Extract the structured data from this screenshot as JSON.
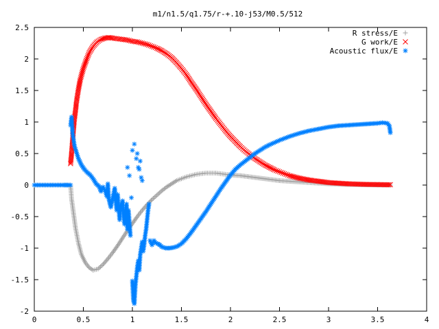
{
  "chart_data": {
    "type": "scatter",
    "title": "m1/n1.5/q1.75/r-+.10-j53/M0.5/512",
    "xlim": [
      0,
      4
    ],
    "ylim": [
      -2,
      2.5
    ],
    "x_ticks": [
      0,
      0.5,
      1,
      1.5,
      2,
      2.5,
      3,
      3.5,
      4
    ],
    "x_tick_labels": [
      "0",
      "0.5",
      "1",
      "1.5",
      "2",
      "2.5",
      "3",
      "3.5",
      "4"
    ],
    "y_ticks": [
      -2,
      -1.5,
      -1,
      -0.5,
      0,
      0.5,
      1,
      1.5,
      2,
      2.5
    ],
    "y_tick_labels": [
      "-2",
      "-1.5",
      "-1",
      "-0.5",
      "0",
      "0.5",
      "1",
      "1.5",
      "2",
      "2.5"
    ],
    "grid": false,
    "legend_position": "top-right",
    "series": [
      {
        "name": "R stress/E",
        "marker": "plus",
        "color": "#a0a0a0",
        "points": [
          [
            0.0,
            0
          ],
          [
            0.05,
            0
          ],
          [
            0.1,
            0
          ],
          [
            0.15,
            0
          ],
          [
            0.2,
            0
          ],
          [
            0.25,
            0
          ],
          [
            0.3,
            0
          ],
          [
            0.34,
            0
          ],
          [
            0.37,
            0
          ],
          [
            0.38,
            -0.22
          ],
          [
            0.4,
            -0.45
          ],
          [
            0.42,
            -0.68
          ],
          [
            0.45,
            -0.92
          ],
          [
            0.48,
            -1.1
          ],
          [
            0.52,
            -1.23
          ],
          [
            0.56,
            -1.31
          ],
          [
            0.6,
            -1.35
          ],
          [
            0.65,
            -1.33
          ],
          [
            0.7,
            -1.26
          ],
          [
            0.75,
            -1.17
          ],
          [
            0.8,
            -1.07
          ],
          [
            0.85,
            -0.96
          ],
          [
            0.9,
            -0.84
          ],
          [
            0.95,
            -0.72
          ],
          [
            1.0,
            -0.61
          ],
          [
            1.05,
            -0.5
          ],
          [
            1.1,
            -0.4
          ],
          [
            1.15,
            -0.31
          ],
          [
            1.2,
            -0.23
          ],
          [
            1.25,
            -0.16
          ],
          [
            1.3,
            -0.09
          ],
          [
            1.35,
            -0.03
          ],
          [
            1.4,
            0.02
          ],
          [
            1.45,
            0.07
          ],
          [
            1.5,
            0.1
          ],
          [
            1.55,
            0.13
          ],
          [
            1.6,
            0.15
          ],
          [
            1.65,
            0.17
          ],
          [
            1.7,
            0.18
          ],
          [
            1.75,
            0.19
          ],
          [
            1.8,
            0.19
          ],
          [
            1.85,
            0.19
          ],
          [
            1.9,
            0.18
          ],
          [
            1.95,
            0.17
          ],
          [
            2.0,
            0.16
          ],
          [
            2.1,
            0.15
          ],
          [
            2.2,
            0.13
          ],
          [
            2.3,
            0.11
          ],
          [
            2.4,
            0.09
          ],
          [
            2.5,
            0.07
          ],
          [
            2.6,
            0.06
          ],
          [
            2.7,
            0.05
          ],
          [
            2.8,
            0.04
          ],
          [
            2.9,
            0.03
          ],
          [
            3.0,
            0.02
          ],
          [
            3.1,
            0.015
          ],
          [
            3.2,
            0.01
          ],
          [
            3.3,
            0.008
          ],
          [
            3.4,
            0.005
          ],
          [
            3.5,
            0.003
          ],
          [
            3.6,
            0.002
          ],
          [
            3.63,
            0.0
          ]
        ]
      },
      {
        "name": "G work/E",
        "marker": "cross",
        "color": "#ff0000",
        "points": [
          [
            0.37,
            0.34
          ],
          [
            0.38,
            0.5
          ],
          [
            0.39,
            0.7
          ],
          [
            0.4,
            0.9
          ],
          [
            0.41,
            1.06
          ],
          [
            0.42,
            1.18
          ],
          [
            0.43,
            1.32
          ],
          [
            0.45,
            1.52
          ],
          [
            0.47,
            1.68
          ],
          [
            0.5,
            1.85
          ],
          [
            0.53,
            1.98
          ],
          [
            0.56,
            2.1
          ],
          [
            0.6,
            2.2
          ],
          [
            0.64,
            2.27
          ],
          [
            0.68,
            2.31
          ],
          [
            0.72,
            2.33
          ],
          [
            0.76,
            2.34
          ],
          [
            0.8,
            2.33
          ],
          [
            0.85,
            2.32
          ],
          [
            0.9,
            2.31
          ],
          [
            0.95,
            2.3
          ],
          [
            1.0,
            2.28
          ],
          [
            1.05,
            2.27
          ],
          [
            1.1,
            2.25
          ],
          [
            1.15,
            2.23
          ],
          [
            1.2,
            2.2
          ],
          [
            1.25,
            2.17
          ],
          [
            1.3,
            2.13
          ],
          [
            1.35,
            2.08
          ],
          [
            1.4,
            2.02
          ],
          [
            1.45,
            1.94
          ],
          [
            1.5,
            1.85
          ],
          [
            1.55,
            1.75
          ],
          [
            1.6,
            1.63
          ],
          [
            1.65,
            1.52
          ],
          [
            1.7,
            1.4
          ],
          [
            1.75,
            1.28
          ],
          [
            1.8,
            1.17
          ],
          [
            1.85,
            1.06
          ],
          [
            1.9,
            0.96
          ],
          [
            1.95,
            0.86
          ],
          [
            2.0,
            0.77
          ],
          [
            2.05,
            0.69
          ],
          [
            2.1,
            0.61
          ],
          [
            2.15,
            0.54
          ],
          [
            2.2,
            0.48
          ],
          [
            2.25,
            0.42
          ],
          [
            2.3,
            0.37
          ],
          [
            2.35,
            0.32
          ],
          [
            2.4,
            0.28
          ],
          [
            2.45,
            0.24
          ],
          [
            2.5,
            0.21
          ],
          [
            2.55,
            0.18
          ],
          [
            2.6,
            0.15
          ],
          [
            2.7,
            0.11
          ],
          [
            2.8,
            0.08
          ],
          [
            2.9,
            0.06
          ],
          [
            3.0,
            0.04
          ],
          [
            3.1,
            0.03
          ],
          [
            3.2,
            0.02
          ],
          [
            3.3,
            0.015
          ],
          [
            3.4,
            0.01
          ],
          [
            3.5,
            0.008
          ],
          [
            3.6,
            0.005
          ],
          [
            3.63,
            0.005
          ]
        ]
      },
      {
        "name": "Acoustic flux/E",
        "marker": "star",
        "color": "#0080ff",
        "points": [
          [
            0.0,
            0
          ],
          [
            0.05,
            0
          ],
          [
            0.1,
            0
          ],
          [
            0.15,
            0
          ],
          [
            0.2,
            0
          ],
          [
            0.25,
            0
          ],
          [
            0.3,
            0
          ],
          [
            0.34,
            0
          ],
          [
            0.37,
            0
          ],
          [
            0.37,
            0.95
          ],
          [
            0.38,
            1.08
          ],
          [
            0.39,
            0.82
          ],
          [
            0.4,
            0.72
          ],
          [
            0.41,
            0.62
          ],
          [
            0.43,
            0.52
          ],
          [
            0.45,
            0.42
          ],
          [
            0.48,
            0.32
          ],
          [
            0.51,
            0.25
          ],
          [
            0.54,
            0.2
          ],
          [
            0.57,
            0.16
          ],
          [
            0.6,
            0.1
          ],
          [
            0.63,
            0.02
          ],
          [
            0.66,
            -0.02
          ],
          [
            0.68,
            -0.1
          ],
          [
            0.7,
            -0.03
          ],
          [
            0.72,
            -0.08
          ],
          [
            0.74,
            -0.18
          ],
          [
            0.75,
            0.02
          ],
          [
            0.76,
            -0.22
          ],
          [
            0.78,
            -0.35
          ],
          [
            0.8,
            -0.2
          ],
          [
            0.82,
            -0.05
          ],
          [
            0.84,
            -0.4
          ],
          [
            0.85,
            -0.15
          ],
          [
            0.87,
            -0.55
          ],
          [
            0.88,
            -0.33
          ],
          [
            0.9,
            -0.25
          ],
          [
            0.91,
            -0.5
          ],
          [
            0.92,
            -0.62
          ],
          [
            0.94,
            -0.3
          ],
          [
            0.95,
            -0.7
          ],
          [
            0.96,
            -0.4
          ],
          [
            0.98,
            -0.8
          ],
          [
            0.99,
            -0.2
          ],
          [
            1.0,
            -1.52
          ],
          [
            1.01,
            -1.82
          ],
          [
            1.02,
            -1.88
          ],
          [
            1.03,
            -1.6
          ],
          [
            1.04,
            -1.45
          ],
          [
            1.05,
            -1.3
          ],
          [
            1.06,
            -1.2
          ],
          [
            1.07,
            -1.35
          ],
          [
            1.08,
            -1.1
          ],
          [
            1.09,
            -1.0
          ],
          [
            1.1,
            -0.9
          ],
          [
            1.11,
            -1.05
          ],
          [
            1.12,
            -0.95
          ],
          [
            1.13,
            -0.8
          ],
          [
            1.14,
            -0.7
          ],
          [
            1.15,
            -0.55
          ],
          [
            1.16,
            -0.4
          ],
          [
            1.17,
            -0.3
          ],
          [
            1.18,
            -0.88
          ],
          [
            1.2,
            -0.95
          ],
          [
            1.22,
            -0.88
          ],
          [
            1.24,
            -0.92
          ],
          [
            1.26,
            -0.93
          ],
          [
            1.28,
            -0.95
          ],
          [
            1.3,
            -0.98
          ],
          [
            1.34,
            -1.0
          ],
          [
            1.38,
            -1.0
          ],
          [
            1.42,
            -0.99
          ],
          [
            1.46,
            -0.97
          ],
          [
            1.5,
            -0.93
          ],
          [
            1.55,
            -0.85
          ],
          [
            1.6,
            -0.75
          ],
          [
            1.65,
            -0.64
          ],
          [
            1.7,
            -0.53
          ],
          [
            1.75,
            -0.42
          ],
          [
            1.8,
            -0.3
          ],
          [
            1.85,
            -0.18
          ],
          [
            1.9,
            -0.06
          ],
          [
            1.95,
            0.05
          ],
          [
            2.0,
            0.16
          ],
          [
            2.05,
            0.25
          ],
          [
            2.1,
            0.32
          ],
          [
            2.15,
            0.38
          ],
          [
            2.2,
            0.44
          ],
          [
            2.25,
            0.5
          ],
          [
            2.3,
            0.55
          ],
          [
            2.35,
            0.6
          ],
          [
            2.4,
            0.64
          ],
          [
            2.5,
            0.71
          ],
          [
            2.6,
            0.77
          ],
          [
            2.7,
            0.82
          ],
          [
            2.8,
            0.86
          ],
          [
            2.9,
            0.89
          ],
          [
            3.0,
            0.92
          ],
          [
            3.1,
            0.94
          ],
          [
            3.2,
            0.95
          ],
          [
            3.3,
            0.96
          ],
          [
            3.4,
            0.97
          ],
          [
            3.5,
            0.98
          ],
          [
            3.55,
            0.99
          ],
          [
            3.6,
            0.98
          ],
          [
            3.62,
            0.94
          ],
          [
            3.63,
            0.83
          ]
        ],
        "extra_points": [
          [
            1.0,
            0.55
          ],
          [
            1.02,
            0.65
          ],
          [
            1.04,
            0.42
          ],
          [
            1.06,
            0.28
          ],
          [
            1.07,
            0.25
          ],
          [
            1.09,
            0.12
          ],
          [
            0.95,
            0.28
          ],
          [
            0.97,
            0.15
          ],
          [
            1.08,
            0.38
          ],
          [
            1.05,
            0.5
          ],
          [
            1.1,
            0.07
          ]
        ]
      }
    ]
  }
}
